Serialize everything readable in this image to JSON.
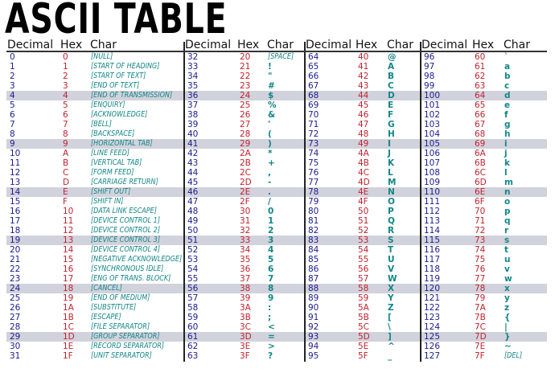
{
  "title": "ASCII TABLE",
  "headers": {
    "decimal": "Decimal",
    "hex": "Hex",
    "char": "Char"
  },
  "colors": {
    "decimal": "#1c1c8e",
    "hex": "#c0232d",
    "char": "#128686",
    "highlight": "#d2d2dc"
  },
  "highlighted_rows": [
    4,
    9,
    14,
    19,
    24,
    29
  ],
  "groups": [
    [
      [
        "0",
        "0",
        "[NULL]"
      ],
      [
        "1",
        "1",
        "[START OF HEADING]"
      ],
      [
        "2",
        "2",
        "[START OF TEXT]"
      ],
      [
        "3",
        "3",
        "[END OF TEXT]"
      ],
      [
        "4",
        "4",
        "[END OF TRANSMISSION]"
      ],
      [
        "5",
        "5",
        "[ENQUIRY]"
      ],
      [
        "6",
        "6",
        "[ACKNOWLEDGE]"
      ],
      [
        "7",
        "7",
        "[BELL]"
      ],
      [
        "8",
        "8",
        "[BACKSPACE]"
      ],
      [
        "9",
        "9",
        "[HORIZONTAL TAB]"
      ],
      [
        "10",
        "A",
        "[LINE FEED]"
      ],
      [
        "11",
        "B",
        "[VERTICAL TAB]"
      ],
      [
        "12",
        "C",
        "[FORM FEED]"
      ],
      [
        "13",
        "D",
        "[CARRIAGE RETURN]"
      ],
      [
        "14",
        "E",
        "[SHIFT OUT]"
      ],
      [
        "15",
        "F",
        "[SHIFT IN]"
      ],
      [
        "16",
        "10",
        "[DATA LINK ESCAPE]"
      ],
      [
        "17",
        "11",
        "[DEVICE CONTROL 1]"
      ],
      [
        "18",
        "12",
        "[DEVICE CONTROL 2]"
      ],
      [
        "19",
        "13",
        "[DEVICE CONTROL 3]"
      ],
      [
        "20",
        "14",
        "[DEVICE CONTROL 4]"
      ],
      [
        "21",
        "15",
        "[NEGATIVE ACKNOWLEDGE]"
      ],
      [
        "22",
        "16",
        "[SYNCHRONOUS IDLE]"
      ],
      [
        "23",
        "17",
        "[ENG OF TRANS. BLOCK]"
      ],
      [
        "24",
        "18",
        "[CANCEL]"
      ],
      [
        "25",
        "19",
        "[END OF MEDIUM]"
      ],
      [
        "26",
        "1A",
        "[SUBSTITUTE]"
      ],
      [
        "27",
        "1B",
        "[ESCAPE]"
      ],
      [
        "28",
        "1C",
        "[FILE SEPARATOR]"
      ],
      [
        "29",
        "1D",
        "[GROUP SEPARATOR]"
      ],
      [
        "30",
        "1E",
        "[RECORD SEPARATOR]"
      ],
      [
        "31",
        "1F",
        "[UNIT SEPARATOR]"
      ]
    ],
    [
      [
        "32",
        "20",
        "[SPACE]"
      ],
      [
        "33",
        "21",
        "!"
      ],
      [
        "34",
        "22",
        "\""
      ],
      [
        "35",
        "23",
        "#"
      ],
      [
        "36",
        "24",
        "$"
      ],
      [
        "37",
        "25",
        "%"
      ],
      [
        "38",
        "26",
        "&"
      ],
      [
        "39",
        "27",
        "'"
      ],
      [
        "40",
        "28",
        "("
      ],
      [
        "41",
        "29",
        ")"
      ],
      [
        "42",
        "2A",
        "*"
      ],
      [
        "43",
        "2B",
        "+"
      ],
      [
        "44",
        "2C",
        ","
      ],
      [
        "45",
        "2D",
        "-"
      ],
      [
        "46",
        "2E",
        "."
      ],
      [
        "47",
        "2F",
        "/"
      ],
      [
        "48",
        "30",
        "0"
      ],
      [
        "49",
        "31",
        "1"
      ],
      [
        "50",
        "32",
        "2"
      ],
      [
        "51",
        "33",
        "3"
      ],
      [
        "52",
        "34",
        "4"
      ],
      [
        "53",
        "35",
        "5"
      ],
      [
        "54",
        "36",
        "6"
      ],
      [
        "55",
        "37",
        "7"
      ],
      [
        "56",
        "38",
        "8"
      ],
      [
        "57",
        "39",
        "9"
      ],
      [
        "58",
        "3A",
        ":"
      ],
      [
        "59",
        "3B",
        ";"
      ],
      [
        "60",
        "3C",
        "<"
      ],
      [
        "61",
        "3D",
        "="
      ],
      [
        "62",
        "3E",
        ">"
      ],
      [
        "63",
        "3F",
        "?"
      ]
    ],
    [
      [
        "64",
        "40",
        "@"
      ],
      [
        "65",
        "41",
        "A"
      ],
      [
        "66",
        "42",
        "B"
      ],
      [
        "67",
        "43",
        "C"
      ],
      [
        "68",
        "44",
        "D"
      ],
      [
        "69",
        "45",
        "E"
      ],
      [
        "70",
        "46",
        "F"
      ],
      [
        "71",
        "47",
        "G"
      ],
      [
        "72",
        "48",
        "H"
      ],
      [
        "73",
        "49",
        "I"
      ],
      [
        "74",
        "4A",
        "J"
      ],
      [
        "75",
        "4B",
        "K"
      ],
      [
        "76",
        "4C",
        "L"
      ],
      [
        "77",
        "4D",
        "M"
      ],
      [
        "78",
        "4E",
        "N"
      ],
      [
        "79",
        "4F",
        "O"
      ],
      [
        "80",
        "50",
        "P"
      ],
      [
        "81",
        "51",
        "Q"
      ],
      [
        "82",
        "52",
        "R"
      ],
      [
        "83",
        "53",
        "S"
      ],
      [
        "84",
        "54",
        "T"
      ],
      [
        "85",
        "55",
        "U"
      ],
      [
        "86",
        "56",
        "V"
      ],
      [
        "87",
        "57",
        "W"
      ],
      [
        "88",
        "58",
        "X"
      ],
      [
        "89",
        "59",
        "Y"
      ],
      [
        "90",
        "5A",
        "Z"
      ],
      [
        "91",
        "5B",
        "["
      ],
      [
        "92",
        "5C",
        "\\"
      ],
      [
        "93",
        "5D",
        "]"
      ],
      [
        "94",
        "5E",
        "^"
      ],
      [
        "95",
        "5F",
        "_"
      ]
    ],
    [
      [
        "96",
        "60",
        "`"
      ],
      [
        "97",
        "61",
        "a"
      ],
      [
        "98",
        "62",
        "b"
      ],
      [
        "99",
        "63",
        "c"
      ],
      [
        "100",
        "64",
        "d"
      ],
      [
        "101",
        "65",
        "e"
      ],
      [
        "102",
        "66",
        "f"
      ],
      [
        "103",
        "67",
        "g"
      ],
      [
        "104",
        "68",
        "h"
      ],
      [
        "105",
        "69",
        "i"
      ],
      [
        "106",
        "6A",
        "j"
      ],
      [
        "107",
        "6B",
        "k"
      ],
      [
        "108",
        "6C",
        "l"
      ],
      [
        "109",
        "6D",
        "m"
      ],
      [
        "110",
        "6E",
        "n"
      ],
      [
        "111",
        "6F",
        "o"
      ],
      [
        "112",
        "70",
        "p"
      ],
      [
        "113",
        "71",
        "q"
      ],
      [
        "114",
        "72",
        "r"
      ],
      [
        "115",
        "73",
        "s"
      ],
      [
        "116",
        "74",
        "t"
      ],
      [
        "117",
        "75",
        "u"
      ],
      [
        "118",
        "76",
        "v"
      ],
      [
        "119",
        "77",
        "w"
      ],
      [
        "120",
        "78",
        "x"
      ],
      [
        "121",
        "79",
        "y"
      ],
      [
        "122",
        "7A",
        "z"
      ],
      [
        "123",
        "7B",
        "{"
      ],
      [
        "124",
        "7C",
        "|"
      ],
      [
        "125",
        "7D",
        "}"
      ],
      [
        "126",
        "7E",
        "~"
      ],
      [
        "127",
        "7F",
        "[DEL]"
      ]
    ]
  ]
}
